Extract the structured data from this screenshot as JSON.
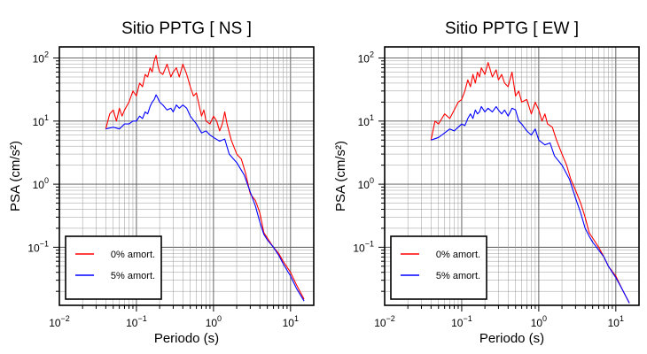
{
  "chart_data": [
    {
      "type": "line",
      "title": "Sitio PPTG [ NS ]",
      "xlabel": "Periodo (s)",
      "ylabel": "PSA (cm/s²)",
      "xscale": "log",
      "yscale": "log",
      "xlim": [
        0.01,
        20
      ],
      "ylim": [
        0.012,
        150
      ],
      "grid": true,
      "legend_position": "bottom-left",
      "x_ticks": [
        {
          "base": "10",
          "exp": "−2",
          "value": 0.01
        },
        {
          "base": "10",
          "exp": "−1",
          "value": 0.1
        },
        {
          "base": "10",
          "exp": "0",
          "value": 1
        },
        {
          "base": "10",
          "exp": "1",
          "value": 10
        }
      ],
      "y_ticks": [
        {
          "base": "10",
          "exp": "−1",
          "value": 0.1
        },
        {
          "base": "10",
          "exp": "0",
          "value": 1
        },
        {
          "base": "10",
          "exp": "1",
          "value": 10
        },
        {
          "base": "10",
          "exp": "2",
          "value": 100
        }
      ],
      "series": [
        {
          "name": "0% amort.",
          "color": "#ff0000",
          "points": [
            [
              0.04,
              7.5
            ],
            [
              0.045,
              13
            ],
            [
              0.05,
              15
            ],
            [
              0.055,
              10
            ],
            [
              0.06,
              16
            ],
            [
              0.065,
              12
            ],
            [
              0.07,
              15
            ],
            [
              0.08,
              20
            ],
            [
              0.09,
              30
            ],
            [
              0.1,
              25
            ],
            [
              0.11,
              40
            ],
            [
              0.12,
              35
            ],
            [
              0.13,
              55
            ],
            [
              0.14,
              50
            ],
            [
              0.15,
              70
            ],
            [
              0.16,
              60
            ],
            [
              0.17,
              90
            ],
            [
              0.18,
              110
            ],
            [
              0.19,
              75
            ],
            [
              0.2,
              60
            ],
            [
              0.22,
              55
            ],
            [
              0.25,
              80
            ],
            [
              0.28,
              50
            ],
            [
              0.3,
              60
            ],
            [
              0.33,
              70
            ],
            [
              0.36,
              50
            ],
            [
              0.4,
              80
            ],
            [
              0.45,
              55
            ],
            [
              0.5,
              35
            ],
            [
              0.55,
              25
            ],
            [
              0.6,
              28
            ],
            [
              0.65,
              18
            ],
            [
              0.7,
              12
            ],
            [
              0.75,
              15
            ],
            [
              0.8,
              10
            ],
            [
              0.9,
              9
            ],
            [
              1.0,
              12
            ],
            [
              1.1,
              10
            ],
            [
              1.2,
              7
            ],
            [
              1.3,
              9
            ],
            [
              1.4,
              14
            ],
            [
              1.5,
              9
            ],
            [
              1.7,
              5
            ],
            [
              2.0,
              3
            ],
            [
              2.3,
              2.5
            ],
            [
              2.6,
              1.5
            ],
            [
              3.0,
              0.7
            ],
            [
              3.5,
              0.55
            ],
            [
              4.0,
              0.35
            ],
            [
              4.5,
              0.17
            ],
            [
              5.0,
              0.14
            ],
            [
              6.0,
              0.1
            ],
            [
              7.0,
              0.08
            ],
            [
              8.0,
              0.06
            ],
            [
              10,
              0.04
            ],
            [
              12,
              0.025
            ],
            [
              15,
              0.015
            ]
          ]
        },
        {
          "name": "5% amort.",
          "color": "#0000ff",
          "points": [
            [
              0.04,
              7.5
            ],
            [
              0.05,
              8
            ],
            [
              0.06,
              7.5
            ],
            [
              0.07,
              9
            ],
            [
              0.08,
              9
            ],
            [
              0.09,
              10
            ],
            [
              0.1,
              10
            ],
            [
              0.11,
              12
            ],
            [
              0.12,
              11
            ],
            [
              0.13,
              14
            ],
            [
              0.14,
              13
            ],
            [
              0.15,
              17
            ],
            [
              0.16,
              20
            ],
            [
              0.17,
              22
            ],
            [
              0.18,
              26
            ],
            [
              0.19,
              23
            ],
            [
              0.2,
              20
            ],
            [
              0.22,
              18
            ],
            [
              0.25,
              15
            ],
            [
              0.28,
              16
            ],
            [
              0.3,
              14
            ],
            [
              0.33,
              18
            ],
            [
              0.36,
              16
            ],
            [
              0.4,
              18
            ],
            [
              0.45,
              16
            ],
            [
              0.5,
              12
            ],
            [
              0.6,
              9
            ],
            [
              0.7,
              6.5
            ],
            [
              0.8,
              7
            ],
            [
              0.9,
              6
            ],
            [
              1.0,
              5.5
            ],
            [
              1.2,
              4.8
            ],
            [
              1.4,
              5.2
            ],
            [
              1.6,
              3
            ],
            [
              2.0,
              2.2
            ],
            [
              2.5,
              1.4
            ],
            [
              3.0,
              0.75
            ],
            [
              3.5,
              0.45
            ],
            [
              4.0,
              0.25
            ],
            [
              4.5,
              0.16
            ],
            [
              5.0,
              0.13
            ],
            [
              6.0,
              0.1
            ],
            [
              7.0,
              0.075
            ],
            [
              8.0,
              0.055
            ],
            [
              10,
              0.035
            ],
            [
              12,
              0.022
            ],
            [
              15,
              0.014
            ]
          ]
        }
      ]
    },
    {
      "type": "line",
      "title": "Sitio PPTG [ EW ]",
      "xlabel": "Periodo (s)",
      "ylabel": "PSA (cm/s²)",
      "xscale": "log",
      "yscale": "log",
      "xlim": [
        0.01,
        20
      ],
      "ylim": [
        0.012,
        150
      ],
      "grid": true,
      "legend_position": "bottom-left",
      "x_ticks": [
        {
          "base": "10",
          "exp": "−2",
          "value": 0.01
        },
        {
          "base": "10",
          "exp": "−1",
          "value": 0.1
        },
        {
          "base": "10",
          "exp": "0",
          "value": 1
        },
        {
          "base": "10",
          "exp": "1",
          "value": 10
        }
      ],
      "y_ticks": [
        {
          "base": "10",
          "exp": "−1",
          "value": 0.1
        },
        {
          "base": "10",
          "exp": "0",
          "value": 1
        },
        {
          "base": "10",
          "exp": "1",
          "value": 10
        },
        {
          "base": "10",
          "exp": "2",
          "value": 100
        }
      ],
      "series": [
        {
          "name": "0% amort.",
          "color": "#ff0000",
          "points": [
            [
              0.04,
              5
            ],
            [
              0.045,
              10
            ],
            [
              0.05,
              9
            ],
            [
              0.06,
              13
            ],
            [
              0.07,
              11
            ],
            [
              0.08,
              15
            ],
            [
              0.09,
              20
            ],
            [
              0.1,
              22
            ],
            [
              0.11,
              30
            ],
            [
              0.12,
              45
            ],
            [
              0.13,
              35
            ],
            [
              0.14,
              55
            ],
            [
              0.15,
              40
            ],
            [
              0.16,
              60
            ],
            [
              0.17,
              50
            ],
            [
              0.18,
              70
            ],
            [
              0.2,
              55
            ],
            [
              0.22,
              85
            ],
            [
              0.25,
              50
            ],
            [
              0.28,
              65
            ],
            [
              0.3,
              45
            ],
            [
              0.33,
              55
            ],
            [
              0.36,
              40
            ],
            [
              0.4,
              35
            ],
            [
              0.45,
              60
            ],
            [
              0.5,
              25
            ],
            [
              0.55,
              30
            ],
            [
              0.6,
              20
            ],
            [
              0.7,
              22
            ],
            [
              0.8,
              13
            ],
            [
              0.9,
              20
            ],
            [
              1.0,
              15
            ],
            [
              1.1,
              10
            ],
            [
              1.2,
              13
            ],
            [
              1.3,
              9
            ],
            [
              1.5,
              8
            ],
            [
              1.7,
              5
            ],
            [
              2.0,
              3
            ],
            [
              2.3,
              2
            ],
            [
              2.6,
              1.2
            ],
            [
              3.0,
              0.8
            ],
            [
              3.5,
              0.5
            ],
            [
              4.0,
              0.3
            ],
            [
              4.5,
              0.17
            ],
            [
              5.0,
              0.14
            ],
            [
              6.0,
              0.1
            ],
            [
              7.0,
              0.07
            ],
            [
              8.0,
              0.05
            ],
            [
              10,
              0.035
            ],
            [
              12,
              0.022
            ],
            [
              15,
              0.013
            ]
          ]
        },
        {
          "name": "5% amort.",
          "color": "#0000ff",
          "points": [
            [
              0.04,
              5
            ],
            [
              0.05,
              5.5
            ],
            [
              0.06,
              6.5
            ],
            [
              0.07,
              7.5
            ],
            [
              0.08,
              7
            ],
            [
              0.09,
              8
            ],
            [
              0.1,
              9
            ],
            [
              0.11,
              8.5
            ],
            [
              0.12,
              11
            ],
            [
              0.13,
              13
            ],
            [
              0.14,
              11
            ],
            [
              0.15,
              15
            ],
            [
              0.16,
              13
            ],
            [
              0.17,
              14
            ],
            [
              0.18,
              17
            ],
            [
              0.2,
              14
            ],
            [
              0.22,
              16
            ],
            [
              0.25,
              14
            ],
            [
              0.28,
              17
            ],
            [
              0.3,
              15
            ],
            [
              0.33,
              13
            ],
            [
              0.36,
              15
            ],
            [
              0.4,
              12
            ],
            [
              0.45,
              16
            ],
            [
              0.5,
              15
            ],
            [
              0.55,
              10
            ],
            [
              0.6,
              9
            ],
            [
              0.7,
              7
            ],
            [
              0.8,
              6
            ],
            [
              0.9,
              7.5
            ],
            [
              1.0,
              5
            ],
            [
              1.2,
              4.2
            ],
            [
              1.4,
              4.5
            ],
            [
              1.6,
              2.8
            ],
            [
              2.0,
              2
            ],
            [
              2.5,
              1.2
            ],
            [
              3.0,
              0.6
            ],
            [
              3.5,
              0.35
            ],
            [
              4.0,
              0.2
            ],
            [
              4.5,
              0.15
            ],
            [
              5.0,
              0.12
            ],
            [
              6.0,
              0.09
            ],
            [
              7.0,
              0.07
            ],
            [
              8.0,
              0.05
            ],
            [
              10,
              0.033
            ],
            [
              12,
              0.022
            ],
            [
              15,
              0.013
            ]
          ]
        }
      ]
    }
  ]
}
